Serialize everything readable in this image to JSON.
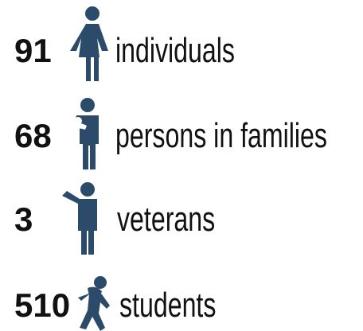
{
  "items": [
    {
      "number": 91,
      "label": "individuals"
    },
    {
      "number": 68,
      "label": "persons in families"
    },
    {
      "number": 3,
      "label": "veterans"
    },
    {
      "number": 510,
      "label": "students"
    }
  ]
}
